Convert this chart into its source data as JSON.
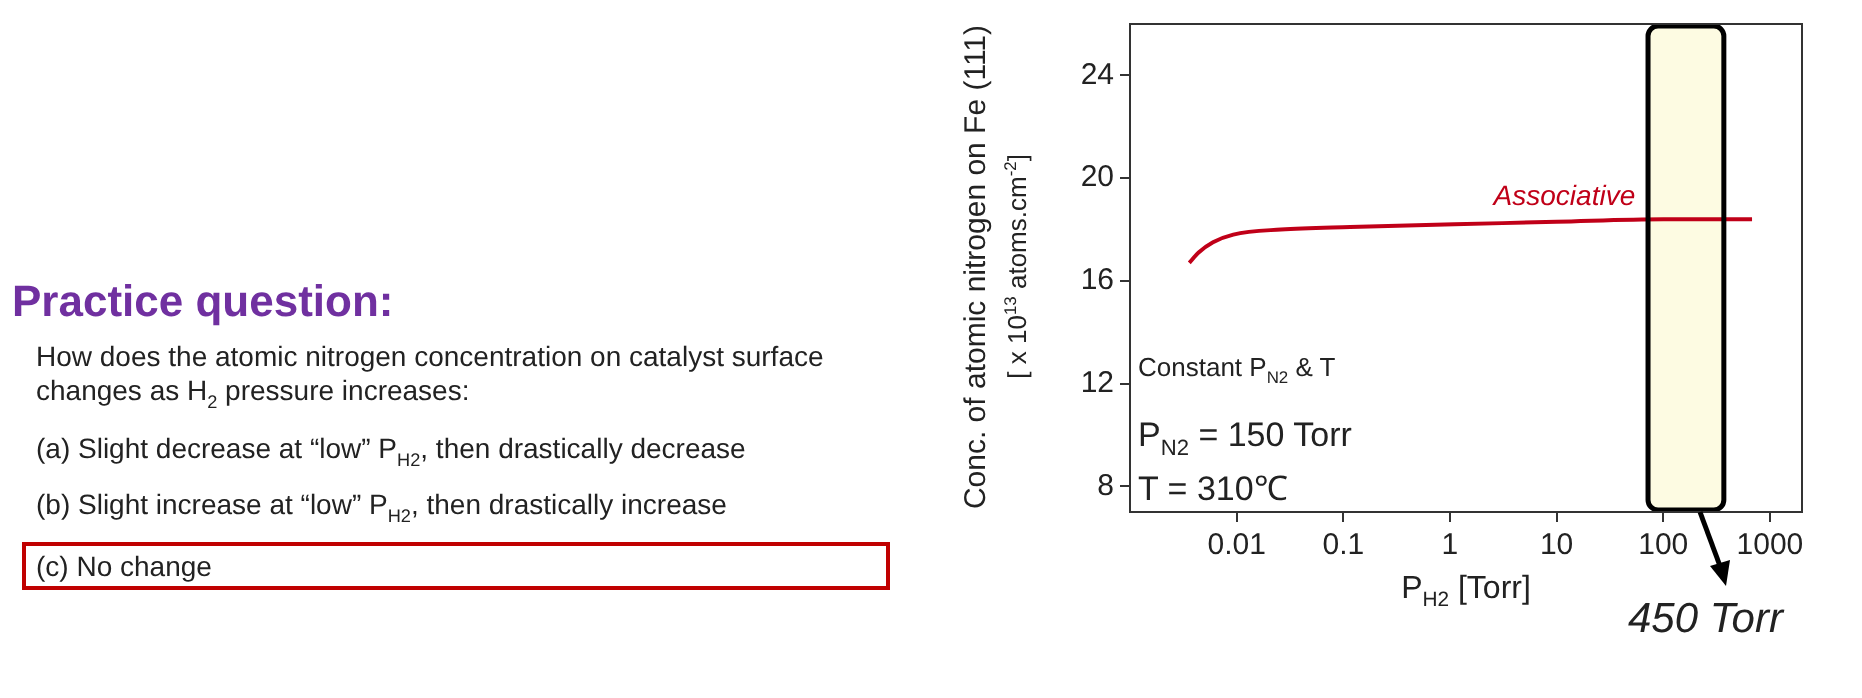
{
  "chart_data": {
    "type": "line",
    "title": "Practice question:",
    "subtitle": "How does the atomic nitrogen concentration on catalyst surface changes as H$_{2}$ pressure increases:",
    "annotations": [
      "(a) Slight decrease at “low” P$_{H2}$, then drastically decrease",
      "(b) Slight increase at “low” P$_{H2}$, then drastically increase",
      "(c) No change",
      "Constant P$_{N2}$ & T",
      "P$_{N2}$ = 150 Torr",
      "T = 310℃"
    ],
    "xlabel": "P$_{H2}$ [Torr]",
    "ylabel": "Conc. of atomic nitrogen on Fe (111)\n[ x 10$^{13}$ atoms.cm$^{-2}$]",
    "log": "x",
    "xlim": [
      0.001,
      2000
    ],
    "xticks": [
      0.01,
      0.1,
      1,
      10,
      100,
      1000
    ],
    "ylim": [
      7,
      26
    ],
    "yticks": [
      8,
      12,
      16,
      20,
      24
    ],
    "grid": false,
    "legend": false,
    "marker": "none",
    "line_style": "solid",
    "series": [
      {
        "name": "Associative",
        "color": "#c00018",
        "x": [
          0.0036,
          0.0044,
          0.006,
          0.0093,
          0.026,
          0.116,
          1.1,
          10,
          100,
          680
        ],
        "values": [
          16.7,
          17.1,
          17.5,
          17.8,
          18.0,
          18.1,
          18.2,
          18.3,
          18.4,
          18.4
        ]
      }
    ],
    "bands": [
      {
        "axis": "x",
        "from": 72,
        "to": 370,
        "label": "450 Torr",
        "color": "#fdfbe2"
      }
    ]
  }
}
